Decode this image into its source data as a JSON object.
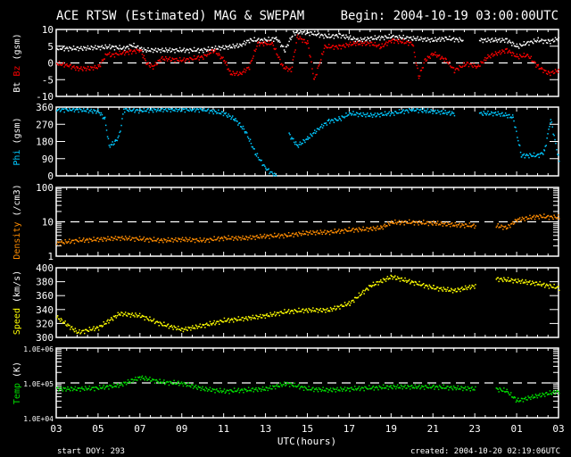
{
  "title": "ACE RTSW (Estimated) MAG & SWEPAM",
  "begin": "Begin: 2004-10-19 03:00:00UTC",
  "footer_left": "start DOY: 293",
  "footer_right": "created: 2004-10-20 02:19:06UTC",
  "colors": {
    "bt": "#ffffff",
    "bz": "#ff0000",
    "phi": "#00c8ff",
    "density": "#ff8c00",
    "speed": "#ffff00",
    "temp": "#00e000"
  },
  "chart_data": [
    {
      "type": "scatter",
      "name": "mag",
      "ylabel_parts": [
        "Bt",
        "Bz",
        "(gsm)"
      ],
      "ylim": [
        -10,
        10
      ],
      "yticks": [
        10,
        5,
        0,
        -5,
        -10
      ],
      "ytick_labels": [
        "10",
        "5",
        "0",
        "-5",
        "-10"
      ],
      "dashed_at": 0,
      "scale": "linear",
      "series": [
        {
          "name": "Bt",
          "color": "#ffffff",
          "x": [
            0,
            1,
            2,
            2.6,
            3.2,
            3.6,
            4.2,
            5,
            6,
            7,
            7.5,
            8.3,
            8.8,
            9.2,
            10,
            10.5,
            10.9,
            11.3,
            11.6,
            12.2,
            13,
            13.5,
            14.4,
            15,
            16,
            17,
            18,
            18.6,
            19.4,
            19.6,
            20.2,
            21,
            21.5,
            22,
            22.4,
            23,
            23.5,
            24
          ],
          "y": [
            4.5,
            4.5,
            4.8,
            5,
            4.5,
            5.5,
            4,
            4,
            4,
            4,
            4.5,
            5,
            5.5,
            7,
            7,
            7.5,
            4,
            9,
            9.5,
            9,
            8,
            8.5,
            7,
            7.5,
            8,
            7.5,
            7,
            7.5,
            7,
            null,
            7,
            7,
            7,
            5,
            6,
            7,
            6.5,
            7.5
          ]
        },
        {
          "name": "Bz",
          "color": "#ff0000",
          "x": [
            0,
            0.5,
            1,
            1.5,
            2,
            2.4,
            2.6,
            3,
            3.5,
            4,
            4.3,
            4.6,
            5,
            6,
            7,
            7.5,
            8,
            8.3,
            8.8,
            9.2,
            9.6,
            10.3,
            10.8,
            11.2,
            11.5,
            12,
            12.3,
            12.8,
            13.5,
            14.2,
            15,
            15.5,
            16,
            17,
            17.3,
            17.6,
            18,
            18.6,
            19,
            19.6,
            20.1,
            20.6,
            21,
            21.5,
            22,
            22.5,
            23,
            23.5,
            24
          ],
          "y": [
            0,
            -0.5,
            -1.5,
            -1.5,
            -1,
            3,
            2.5,
            3,
            3.5,
            4,
            0,
            -1,
            1.5,
            1,
            2,
            4,
            1,
            -3,
            -3,
            -1,
            6,
            6,
            -1,
            -2,
            8,
            6,
            -5,
            5,
            5,
            6,
            6,
            5,
            7,
            6,
            -4,
            1,
            3,
            1,
            -2,
            0,
            -1,
            2,
            3,
            4,
            2,
            2.5,
            -1,
            -3,
            -2
          ]
        }
      ]
    },
    {
      "type": "scatter",
      "name": "phi",
      "ylabel_parts": [
        "Phi",
        "(gsm)"
      ],
      "ylim": [
        0,
        360
      ],
      "yticks": [
        360,
        270,
        180,
        90,
        0
      ],
      "ytick_labels": [
        "360",
        "270",
        "180",
        "90",
        "0"
      ],
      "scale": "linear",
      "series": [
        {
          "name": "Phi",
          "color": "#00c8ff",
          "x": [
            0,
            1,
            2,
            2.3,
            2.5,
            2.8,
            3,
            3.2,
            4,
            5,
            6,
            7,
            8,
            8.5,
            9,
            9.5,
            10,
            10.5,
            10.8,
            11.1,
            11.5,
            12,
            12.5,
            13,
            13.5,
            14,
            15,
            16,
            17,
            18,
            19,
            19.6,
            20.2,
            21,
            21.5,
            21.8,
            22.2,
            23,
            23.3,
            23.6,
            24
          ],
          "y": [
            350,
            350,
            340,
            300,
            160,
            180,
            220,
            350,
            345,
            350,
            350,
            350,
            330,
            300,
            240,
            120,
            40,
            0,
            null,
            220,
            160,
            200,
            250,
            290,
            300,
            330,
            320,
            330,
            350,
            340,
            330,
            null,
            330,
            330,
            320,
            310,
            110,
            110,
            130,
            300,
            80
          ]
        }
      ]
    },
    {
      "type": "scatter",
      "name": "density",
      "ylabel_parts": [
        "Density",
        "(/cm3)"
      ],
      "ylim": [
        1,
        100
      ],
      "yticks": [
        100,
        10,
        1
      ],
      "ytick_labels": [
        "100",
        "10",
        "1"
      ],
      "dashed_at": 10,
      "scale": "log",
      "series": [
        {
          "name": "Density",
          "color": "#ff8c00",
          "x": [
            0,
            1,
            2,
            3,
            4,
            5,
            6,
            7,
            8,
            9,
            10,
            11,
            12,
            13,
            14,
            15,
            15.5,
            16,
            17,
            18,
            19,
            20,
            20.2,
            21,
            21.5,
            22,
            23,
            24
          ],
          "y": [
            2.5,
            3,
            3.2,
            3.5,
            3.3,
            3,
            3.2,
            3,
            3.5,
            3.5,
            4,
            4.2,
            5,
            5.2,
            6,
            6.5,
            7,
            10,
            10,
            9.5,
            8.5,
            8,
            null,
            8,
            7,
            12,
            15,
            14
          ]
        }
      ]
    },
    {
      "type": "scatter",
      "name": "speed",
      "ylabel_parts": [
        "Speed",
        "(km/s)"
      ],
      "ylim": [
        300,
        400
      ],
      "yticks": [
        400,
        380,
        360,
        340,
        320,
        300
      ],
      "ytick_labels": [
        "400",
        "380",
        "360",
        "340",
        "320",
        "300"
      ],
      "scale": "linear",
      "series": [
        {
          "name": "Speed",
          "color": "#ffff00",
          "x": [
            0,
            1,
            2,
            3,
            4,
            5,
            6,
            7,
            8,
            9,
            10,
            11,
            12,
            13,
            14,
            15,
            16,
            17,
            18,
            19,
            20,
            20.3,
            21,
            22,
            23,
            24
          ],
          "y": [
            330,
            308,
            315,
            335,
            332,
            320,
            312,
            318,
            325,
            328,
            332,
            338,
            340,
            340,
            350,
            375,
            388,
            380,
            372,
            368,
            375,
            null,
            385,
            382,
            378,
            372
          ]
        }
      ]
    },
    {
      "type": "scatter",
      "name": "temp",
      "ylabel_parts": [
        "Temp",
        "(K)"
      ],
      "ylim": [
        10000,
        1000000
      ],
      "yticks": [
        1000000,
        100000,
        10000
      ],
      "ytick_labels": [
        "1.0E+06",
        "1.0E+05",
        "1.0E+04"
      ],
      "dashed_at": 100000,
      "scale": "log",
      "series": [
        {
          "name": "Temp",
          "color": "#00e000",
          "x": [
            0,
            1,
            2,
            3,
            4,
            5,
            6,
            7,
            8,
            9,
            10,
            11,
            12,
            13,
            14,
            15,
            16,
            17,
            18,
            19,
            20,
            20.3,
            21,
            21.5,
            22,
            23,
            24
          ],
          "y": [
            70000,
            70000,
            75000,
            90000,
            150000,
            110000,
            100000,
            70000,
            60000,
            65000,
            70000,
            100000,
            70000,
            65000,
            70000,
            75000,
            80000,
            80000,
            80000,
            75000,
            70000,
            null,
            70000,
            60000,
            32000,
            45000,
            60000
          ]
        }
      ]
    }
  ],
  "x_axis": {
    "label": "UTC(hours)",
    "tick_labels": [
      "03",
      "05",
      "07",
      "09",
      "11",
      "13",
      "15",
      "17",
      "19",
      "21",
      "23",
      "01",
      "03"
    ],
    "range_hours": [
      0,
      24
    ]
  }
}
